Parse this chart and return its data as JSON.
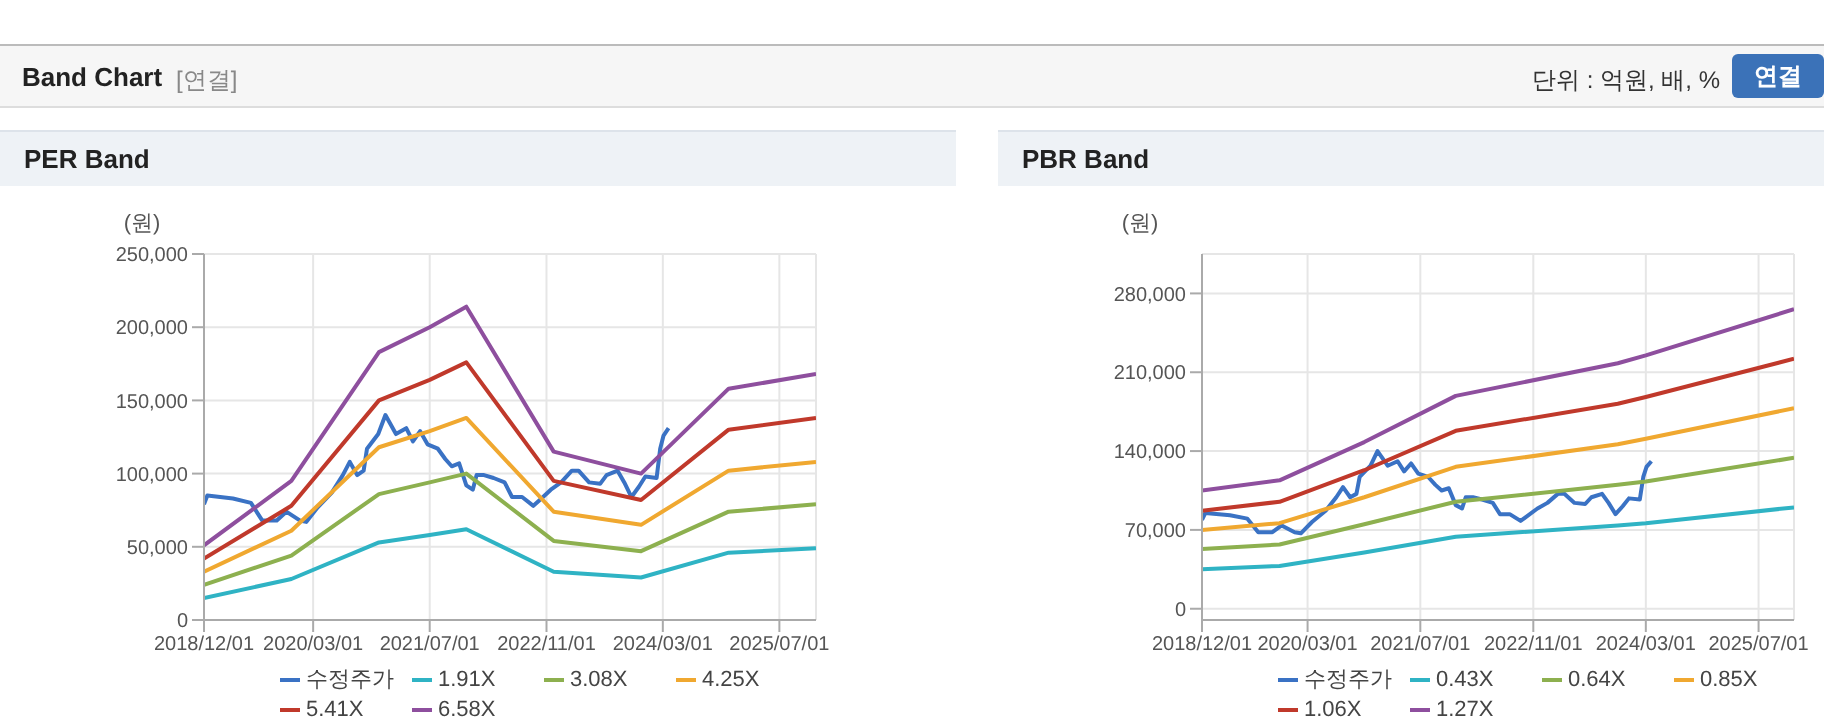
{
  "chart_data": [
    {
      "type": "line",
      "title": "PER Band",
      "ylabel": "(원)",
      "annotations": [
        "Band Chart",
        "[연결]",
        "단위 : 억원, 배, %",
        "연결"
      ],
      "x": [
        "2018-12-01",
        "2019-12-01",
        "2020-12-01",
        "2021-07-01",
        "2021-12-01",
        "2022-12-01",
        "2023-12-01",
        "2024-12-01",
        "2025-12-01"
      ],
      "series": [
        {
          "name": "수정주가",
          "color": "#3a72c4",
          "x": [
            "2018-12-01",
            "2018-12-15",
            "2019-04-01",
            "2019-06-15",
            "2019-08-01",
            "2019-10-01",
            "2019-11-10",
            "2020-01-05",
            "2020-02-01",
            "2020-03-20",
            "2020-05-18",
            "2020-07-03",
            "2020-08-01",
            "2020-09-01",
            "2020-09-28",
            "2020-10-12",
            "2020-11-28",
            "2020-12-28",
            "2021-02-10",
            "2021-03-25",
            "2021-04-22",
            "2021-05-22",
            "2021-06-22",
            "2021-08-04",
            "2021-09-04",
            "2021-10-01",
            "2021-11-01",
            "2021-12-01",
            "2021-12-28",
            "2022-01-13",
            "2022-02-13",
            "2022-03-25",
            "2022-05-10",
            "2022-06-10",
            "2022-07-22",
            "2022-09-07",
            "2022-10-04",
            "2022-11-19",
            "2023-01-01",
            "2023-02-15",
            "2023-03-15",
            "2023-04-28",
            "2023-06-13",
            "2023-07-10",
            "2023-08-25",
            "2023-09-22",
            "2023-10-22",
            "2023-11-22",
            "2023-12-19",
            "2024-02-04",
            "2024-02-19",
            "2024-03-04",
            "2024-03-25"
          ],
          "values": [
            79000,
            85000,
            83000,
            80000,
            68000,
            68000,
            74000,
            68000,
            67000,
            77000,
            87000,
            99000,
            108000,
            99000,
            102000,
            117000,
            127000,
            140000,
            127000,
            131000,
            122000,
            129000,
            120000,
            117000,
            110000,
            105000,
            107000,
            92000,
            89000,
            99000,
            99000,
            97000,
            94000,
            84000,
            84000,
            78000,
            82000,
            89000,
            94000,
            102000,
            102000,
            94000,
            93000,
            99000,
            102000,
            94000,
            84000,
            91000,
            98000,
            97000,
            117000,
            126000,
            131000
          ]
        },
        {
          "name": "1.91X",
          "color": "#2fb3c4",
          "values": [
            15000,
            28000,
            53000,
            58000,
            62000,
            33000,
            29000,
            46000,
            49000
          ]
        },
        {
          "name": "3.08X",
          "color": "#8db04f",
          "values": [
            24000,
            44000,
            86000,
            94000,
            100000,
            54000,
            47000,
            74000,
            79000
          ]
        },
        {
          "name": "4.25X",
          "color": "#f0a830",
          "values": [
            33000,
            61000,
            118000,
            129000,
            138000,
            74000,
            65000,
            102000,
            108000
          ]
        },
        {
          "name": "5.41X",
          "color": "#c0392b",
          "values": [
            42000,
            78000,
            150000,
            164000,
            176000,
            95000,
            82000,
            130000,
            138000
          ]
        },
        {
          "name": "6.58X",
          "color": "#8e4f9e",
          "values": [
            51000,
            95000,
            183000,
            200000,
            214000,
            115000,
            100000,
            158000,
            168000
          ]
        }
      ],
      "xlim": [
        "2018-12-01",
        "2025-12-01"
      ],
      "xticks": [
        {
          "value": "2018-12-01",
          "label": "2018/12/01"
        },
        {
          "value": "2020-03-01",
          "label": "2020/03/01"
        },
        {
          "value": "2021-07-01",
          "label": "2021/07/01"
        },
        {
          "value": "2022-11-01",
          "label": "2022/11/01"
        },
        {
          "value": "2024-03-01",
          "label": "2024/03/01"
        },
        {
          "value": "2025-07-01",
          "label": "2025/07/01"
        }
      ],
      "ylim": [
        0,
        250000
      ],
      "yticks": [
        {
          "value": 0,
          "label": "0"
        },
        {
          "value": 50000,
          "label": "50,000"
        },
        {
          "value": 100000,
          "label": "100,000"
        },
        {
          "value": 150000,
          "label": "150,000"
        },
        {
          "value": 200000,
          "label": "200,000"
        },
        {
          "value": 250000,
          "label": "250,000"
        }
      ],
      "grid": true,
      "legend": "bottom",
      "marker": "none",
      "line_style": "solid"
    },
    {
      "type": "line",
      "title": "PBR Band",
      "ylabel": "(원)",
      "x": [
        "2018-12-01",
        "2019-11-01",
        "2020-11-01",
        "2021-12-01",
        "2023-11-01",
        "2024-03-01",
        "2025-12-01"
      ],
      "series": [
        {
          "name": "수정주가",
          "color": "#3a72c4",
          "x": [
            "2018-12-01",
            "2018-12-15",
            "2019-04-01",
            "2019-06-15",
            "2019-08-01",
            "2019-10-01",
            "2019-11-10",
            "2020-01-05",
            "2020-02-01",
            "2020-03-20",
            "2020-05-18",
            "2020-07-03",
            "2020-08-01",
            "2020-09-01",
            "2020-09-28",
            "2020-10-12",
            "2020-11-28",
            "2020-12-28",
            "2021-02-10",
            "2021-03-25",
            "2021-04-22",
            "2021-05-22",
            "2021-06-22",
            "2021-08-04",
            "2021-09-04",
            "2021-10-01",
            "2021-11-01",
            "2021-12-01",
            "2021-12-28",
            "2022-01-13",
            "2022-02-13",
            "2022-03-25",
            "2022-05-10",
            "2022-06-10",
            "2022-07-22",
            "2022-09-07",
            "2022-10-04",
            "2022-11-19",
            "2023-01-01",
            "2023-02-15",
            "2023-03-15",
            "2023-04-28",
            "2023-06-13",
            "2023-07-10",
            "2023-08-25",
            "2023-09-22",
            "2023-10-22",
            "2023-11-22",
            "2023-12-19",
            "2024-02-04",
            "2024-02-19",
            "2024-03-04",
            "2024-03-25"
          ],
          "values": [
            79000,
            85000,
            83000,
            80000,
            68000,
            68000,
            74000,
            68000,
            67000,
            77000,
            87000,
            99000,
            108000,
            99000,
            102000,
            117000,
            127000,
            140000,
            127000,
            131000,
            122000,
            129000,
            120000,
            117000,
            110000,
            105000,
            107000,
            92000,
            89000,
            99000,
            99000,
            97000,
            94000,
            84000,
            84000,
            78000,
            82000,
            89000,
            94000,
            102000,
            102000,
            94000,
            93000,
            99000,
            102000,
            94000,
            84000,
            91000,
            98000,
            97000,
            117000,
            126000,
            131000
          ]
        },
        {
          "name": "0.43X",
          "color": "#2fb3c4",
          "values": [
            35000,
            38000,
            50000,
            64000,
            74000,
            76000,
            90000
          ]
        },
        {
          "name": "0.64X",
          "color": "#8db04f",
          "values": [
            53000,
            57000,
            75000,
            95000,
            110000,
            113000,
            134000
          ]
        },
        {
          "name": "0.85X",
          "color": "#f0a830",
          "values": [
            70000,
            76000,
            99000,
            126000,
            146000,
            151000,
            178000
          ]
        },
        {
          "name": "1.06X",
          "color": "#c0392b",
          "values": [
            87000,
            95000,
            123000,
            158000,
            182000,
            188000,
            222000
          ]
        },
        {
          "name": "1.27X",
          "color": "#8e4f9e",
          "values": [
            105000,
            114000,
            148000,
            189000,
            218000,
            225000,
            266000
          ]
        }
      ],
      "xlim": [
        "2018-12-01",
        "2025-12-01"
      ],
      "xticks": [
        {
          "value": "2018-12-01",
          "label": "2018/12/01"
        },
        {
          "value": "2020-03-01",
          "label": "2020/03/01"
        },
        {
          "value": "2021-07-01",
          "label": "2021/07/01"
        },
        {
          "value": "2022-11-01",
          "label": "2022/11/01"
        },
        {
          "value": "2024-03-01",
          "label": "2024/03/01"
        },
        {
          "value": "2025-07-01",
          "label": "2025/07/01"
        }
      ],
      "ylim": [
        -10000,
        315000
      ],
      "yticks": [
        {
          "value": 0,
          "label": "0"
        },
        {
          "value": 70000,
          "label": "70,000"
        },
        {
          "value": 140000,
          "label": "140,000"
        },
        {
          "value": 210000,
          "label": "210,000"
        },
        {
          "value": 280000,
          "label": "280,000"
        }
      ],
      "grid": true,
      "legend": "bottom",
      "marker": "none",
      "line_style": "solid"
    }
  ]
}
